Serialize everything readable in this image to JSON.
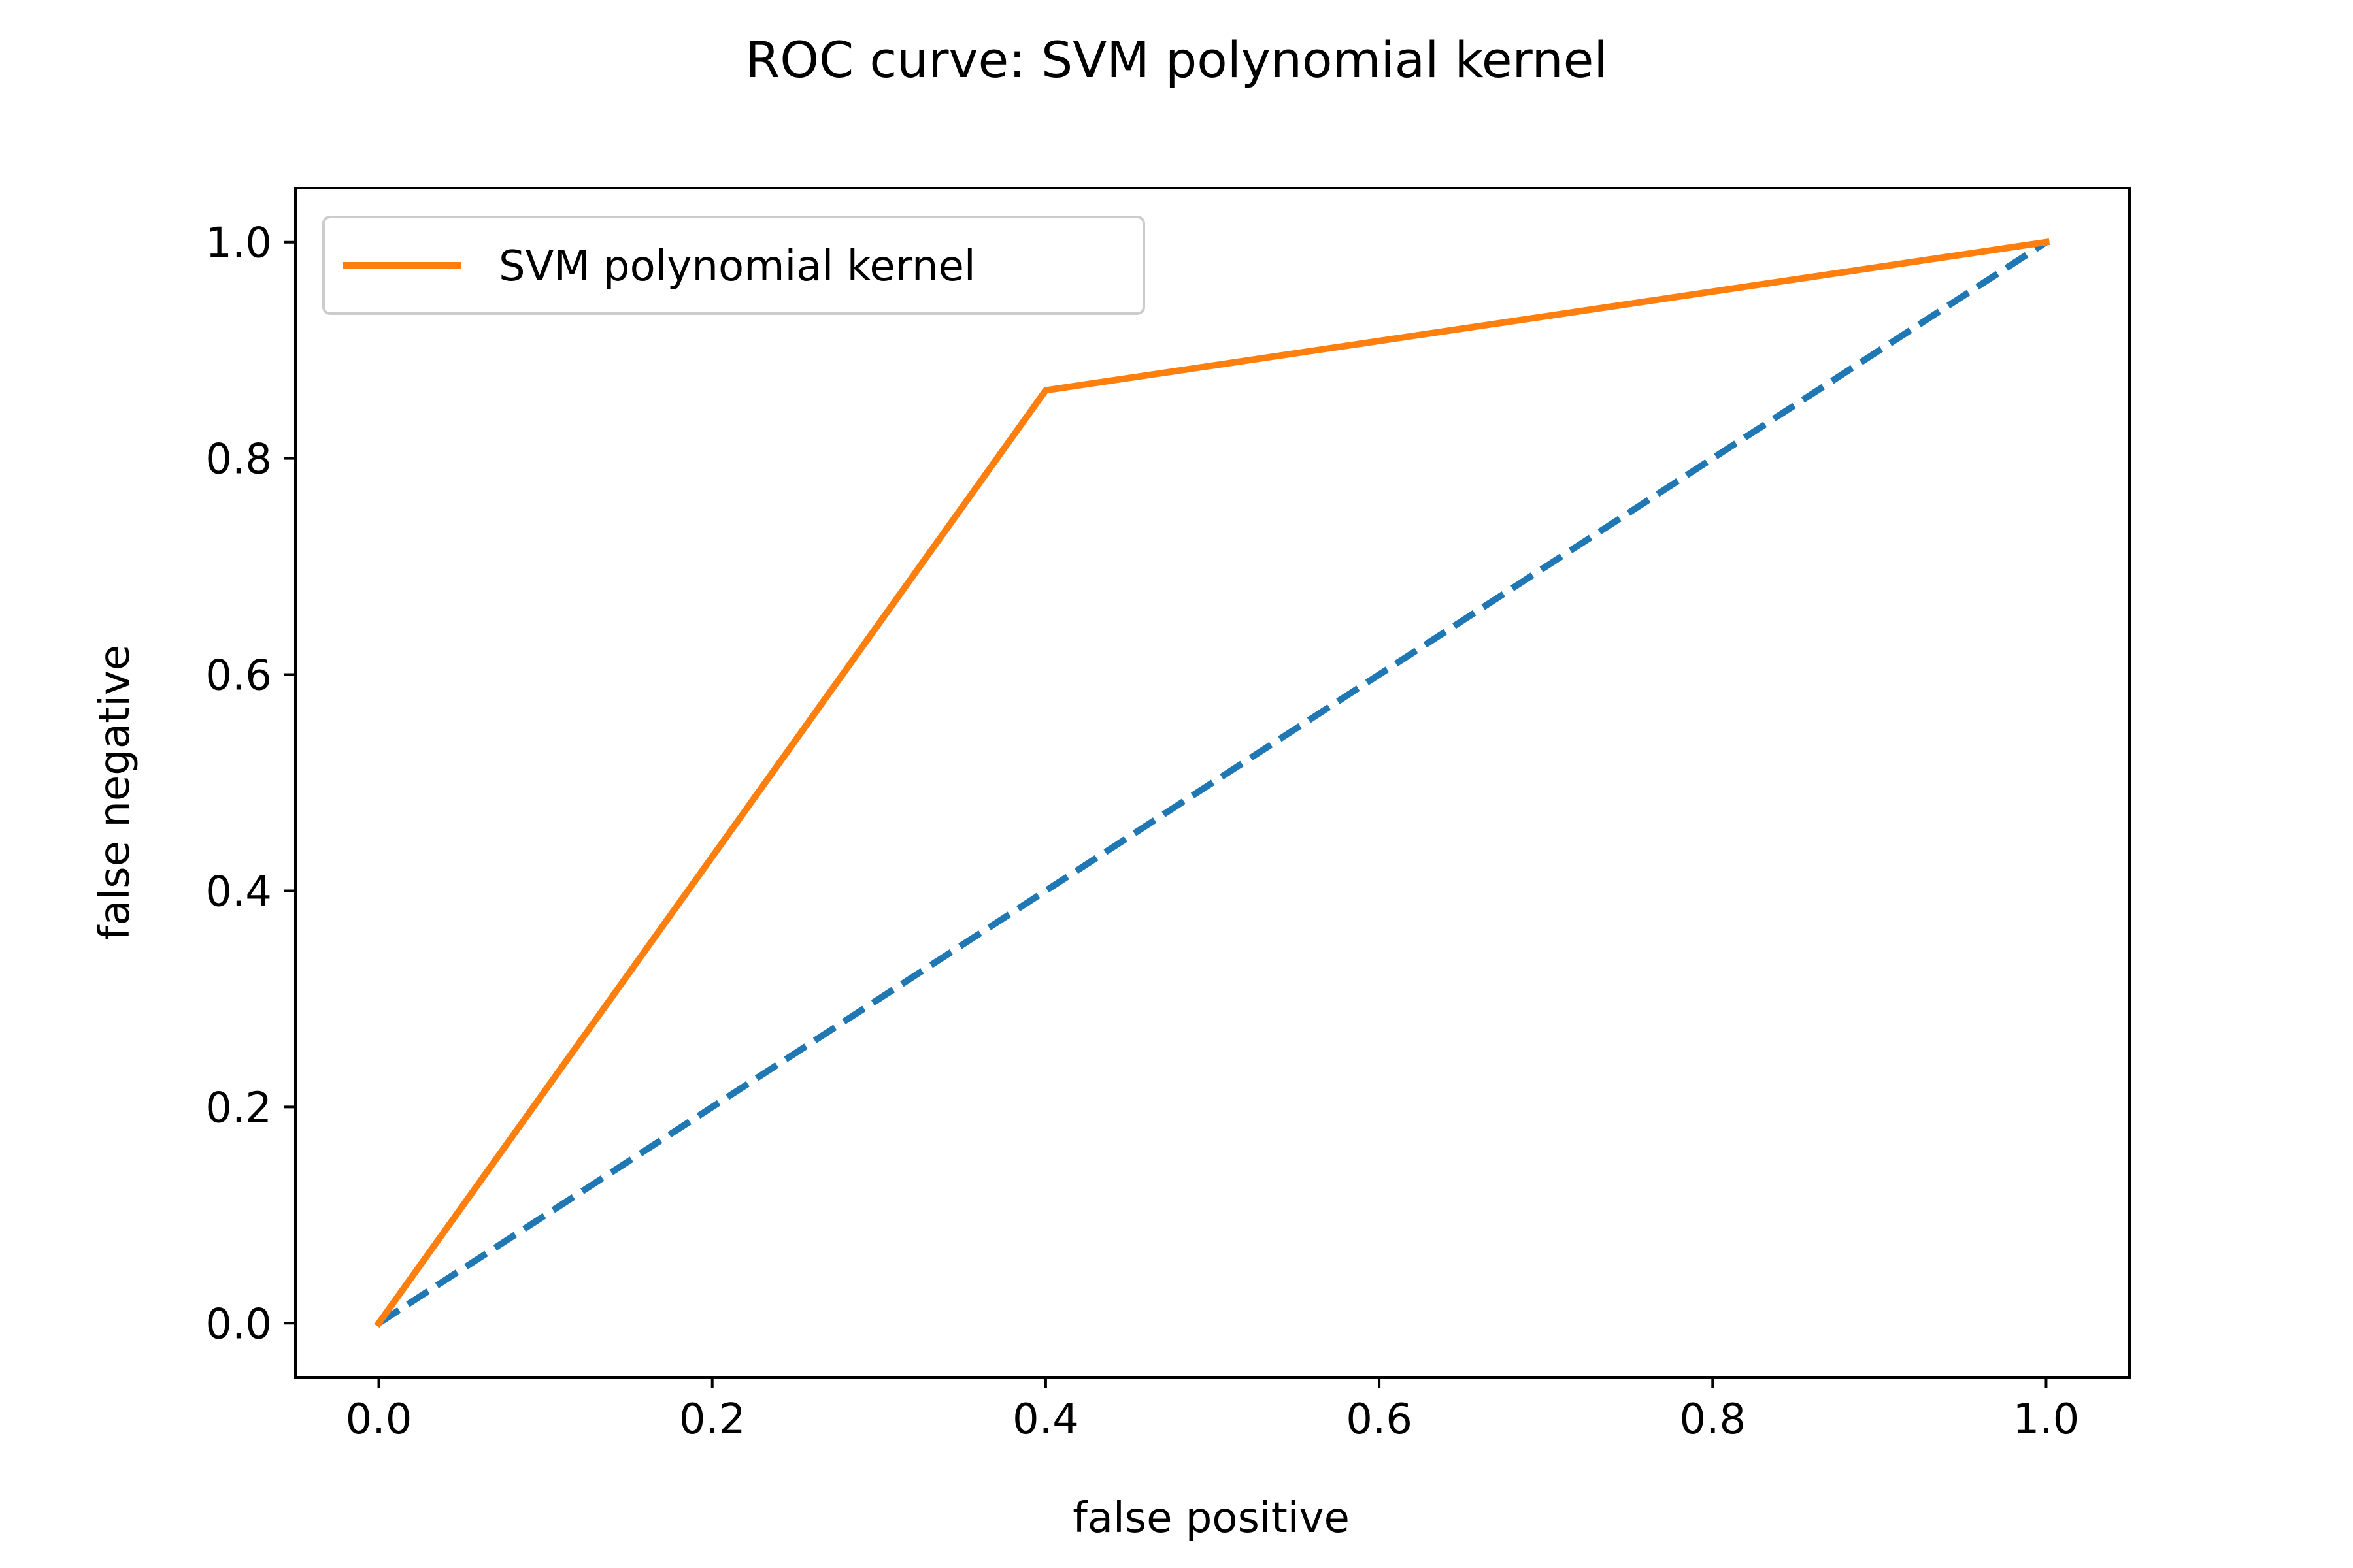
{
  "chart_data": {
    "type": "line",
    "title": "ROC curve: SVM polynomial kernel",
    "xlabel": "false positive",
    "ylabel": "false negative",
    "xlim": [
      -0.05,
      1.05
    ],
    "ylim": [
      -0.05,
      1.05
    ],
    "xticks": [
      0.0,
      0.2,
      0.4,
      0.6,
      0.8,
      1.0
    ],
    "xtick_labels": [
      "0.0",
      "0.2",
      "0.4",
      "0.6",
      "0.8",
      "1.0"
    ],
    "yticks": [
      0.0,
      0.2,
      0.4,
      0.6,
      0.8,
      1.0
    ],
    "ytick_labels": [
      "0.0",
      "0.2",
      "0.4",
      "0.6",
      "0.8",
      "1.0"
    ],
    "grid": false,
    "legend_position": "top-left",
    "series": [
      {
        "name": "SVM polynomial kernel",
        "x": [
          0.0,
          0.4,
          1.0
        ],
        "y": [
          0.0,
          0.863,
          1.0
        ],
        "color": "#ff7f0e",
        "style": "solid",
        "in_legend": true
      },
      {
        "x": [
          0.0,
          1.0
        ],
        "y": [
          0.0,
          1.0
        ],
        "color": "#1f77b4",
        "style": "dashed",
        "in_legend": false
      }
    ]
  }
}
